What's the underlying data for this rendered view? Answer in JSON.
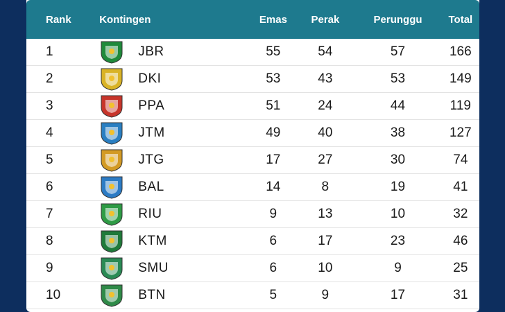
{
  "headers": {
    "rank": "Rank",
    "kontingen": "Kontingen",
    "emas": "Emas",
    "perak": "Perak",
    "perunggu": "Perunggu",
    "total": "Total"
  },
  "rows": [
    {
      "rank": "1",
      "code": "JBR",
      "emas": "55",
      "perak": "54",
      "perunggu": "57",
      "total": "166",
      "logo": "west-java-emblem",
      "color": "#1f8a3b"
    },
    {
      "rank": "2",
      "code": "DKI",
      "emas": "53",
      "perak": "43",
      "perunggu": "53",
      "total": "149",
      "logo": "jakarta-emblem",
      "color": "#d9b326"
    },
    {
      "rank": "3",
      "code": "PPA",
      "emas": "51",
      "perak": "24",
      "perunggu": "44",
      "total": "119",
      "logo": "papua-emblem",
      "color": "#c7352b"
    },
    {
      "rank": "4",
      "code": "JTM",
      "emas": "49",
      "perak": "40",
      "perunggu": "38",
      "total": "127",
      "logo": "east-java-emblem",
      "color": "#2a7fc2"
    },
    {
      "rank": "5",
      "code": "JTG",
      "emas": "17",
      "perak": "27",
      "perunggu": "30",
      "total": "74",
      "logo": "central-java-emblem",
      "color": "#d39a24"
    },
    {
      "rank": "6",
      "code": "BAL",
      "emas": "14",
      "perak": "8",
      "perunggu": "19",
      "total": "41",
      "logo": "bali-emblem",
      "color": "#2c7bc4"
    },
    {
      "rank": "7",
      "code": "RIU",
      "emas": "9",
      "perak": "13",
      "perunggu": "10",
      "total": "32",
      "logo": "riau-emblem",
      "color": "#2e9b45"
    },
    {
      "rank": "8",
      "code": "KTM",
      "emas": "6",
      "perak": "17",
      "perunggu": "23",
      "total": "46",
      "logo": "east-kalimantan-emblem",
      "color": "#1f7a3a"
    },
    {
      "rank": "9",
      "code": "SMU",
      "emas": "6",
      "perak": "10",
      "perunggu": "9",
      "total": "25",
      "logo": "north-sumatra-emblem",
      "color": "#2a8a55"
    },
    {
      "rank": "10",
      "code": "BTN",
      "emas": "5",
      "perak": "9",
      "perunggu": "17",
      "total": "31",
      "logo": "banten-emblem",
      "color": "#2f8a48"
    }
  ]
}
